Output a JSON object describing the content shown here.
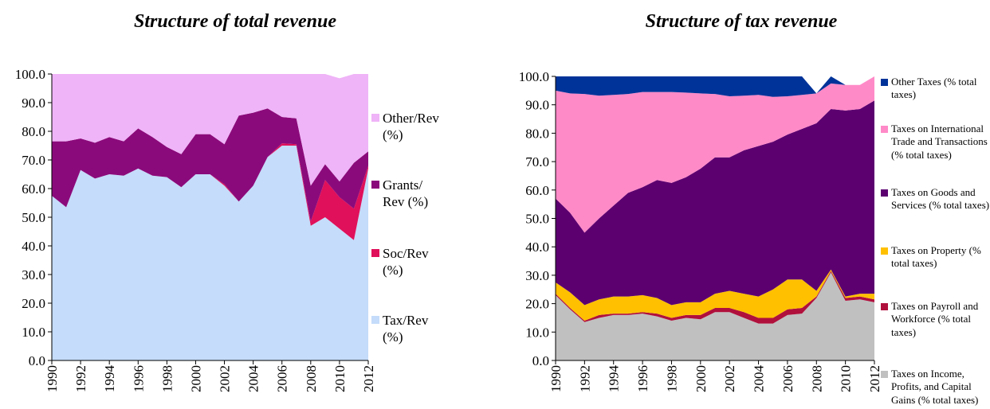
{
  "chart_data": [
    {
      "type": "area",
      "stacked": true,
      "title": "Structure of total revenue",
      "x": [
        1990,
        1991,
        1992,
        1993,
        1994,
        1995,
        1996,
        1997,
        1998,
        1999,
        2000,
        2001,
        2002,
        2003,
        2004,
        2005,
        2006,
        2007,
        2008,
        2009,
        2010,
        2011,
        2012
      ],
      "xlim": [
        1990,
        2012
      ],
      "xticks": [
        1990,
        1992,
        1994,
        1996,
        1998,
        2000,
        2002,
        2004,
        2006,
        2008,
        2010,
        2012
      ],
      "ylim": [
        0,
        100
      ],
      "yticks": [
        {
          "value": 0,
          "label": "0.0"
        },
        {
          "value": 10,
          "label": "10.0"
        },
        {
          "value": 20,
          "label": "20.0"
        },
        {
          "value": 30,
          "label": "30.0"
        },
        {
          "value": 40,
          "label": "40.0"
        },
        {
          "value": 50,
          "label": "50.0"
        },
        {
          "value": 60,
          "label": "60.0"
        },
        {
          "value": 70,
          "label": "70.0"
        },
        {
          "value": 80,
          "label": "80.0"
        },
        {
          "value": 90,
          "label": "90.0"
        },
        {
          "value": 100,
          "label": "100.0"
        }
      ],
      "series": [
        {
          "name": "Tax/Rev (%)",
          "color": "#c5dcfa",
          "values": [
            57.5,
            53.5,
            66.5,
            63.5,
            65,
            64.5,
            67,
            64.5,
            64,
            60.5,
            65,
            65,
            61,
            55.5,
            61,
            71,
            75,
            75,
            47,
            50,
            46,
            42,
            67
          ]
        },
        {
          "name": "Soc/Rev (%)",
          "color": "#e0105a",
          "values": [
            0,
            0,
            0,
            0,
            0,
            0,
            0,
            0,
            0,
            0,
            0,
            0,
            0.5,
            0,
            0,
            0,
            0.8,
            0.5,
            1.5,
            13,
            11,
            11,
            1
          ]
        },
        {
          "name": "Grants/ Rev (%)",
          "color": "#8b0a7b",
          "values": [
            19,
            23,
            11,
            12.5,
            13,
            12,
            14,
            13.5,
            10.5,
            11.5,
            14,
            14,
            14,
            30,
            25.5,
            17,
            9.2,
            9,
            12.5,
            5.5,
            5.5,
            16,
            5
          ]
        },
        {
          "name": "Other/Rev (%)",
          "color": "#efb3f7",
          "values": [
            23.5,
            23.5,
            22.5,
            24,
            22,
            23.5,
            19,
            22,
            25.5,
            28,
            21,
            21,
            24.5,
            14.5,
            13.5,
            12,
            15,
            15.5,
            39,
            31.5,
            36,
            31,
            27
          ]
        }
      ]
    },
    {
      "type": "area",
      "stacked": true,
      "title": "Structure of tax revenue",
      "x": [
        1990,
        1991,
        1992,
        1993,
        1994,
        1995,
        1996,
        1997,
        1998,
        1999,
        2000,
        2001,
        2002,
        2003,
        2004,
        2005,
        2006,
        2007,
        2008,
        2009,
        2010,
        2011,
        2012
      ],
      "xlim": [
        1990,
        2012
      ],
      "xticks": [
        1990,
        1992,
        1994,
        1996,
        1998,
        2000,
        2002,
        2004,
        2006,
        2008,
        2010,
        2012
      ],
      "ylim": [
        0,
        100
      ],
      "yticks": [
        {
          "value": 0,
          "label": "0.0"
        },
        {
          "value": 10,
          "label": "10.0"
        },
        {
          "value": 20,
          "label": "20.0"
        },
        {
          "value": 30,
          "label": "30.0"
        },
        {
          "value": 40,
          "label": "40.0"
        },
        {
          "value": 50,
          "label": "50.0"
        },
        {
          "value": 60,
          "label": "60.0"
        },
        {
          "value": 70,
          "label": "70.0"
        },
        {
          "value": 80,
          "label": "80.0"
        },
        {
          "value": 90,
          "label": "90.0"
        },
        {
          "value": 100,
          "label": "100.0"
        }
      ],
      "series": [
        {
          "name": "Taxes on Income, Profits, and Capital Gains (% total taxes)",
          "color": "#c0c0c0",
          "values": [
            23,
            18,
            13.5,
            15,
            16,
            16,
            16.5,
            15.5,
            14,
            15,
            14.5,
            17,
            17,
            15,
            13,
            13,
            16,
            16.5,
            22,
            31,
            21,
            21.5,
            20.5
          ]
        },
        {
          "name": "Taxes on Payroll and Workforce (% total taxes)",
          "color": "#b0103c",
          "values": [
            0.5,
            0.5,
            0.5,
            1,
            0.5,
            0.5,
            0.5,
            1,
            1,
            1,
            1.5,
            1.5,
            1.5,
            2,
            2,
            2,
            2,
            2,
            0.5,
            0.5,
            1,
            1,
            1
          ]
        },
        {
          "name": "Taxes on Property (% total taxes)",
          "color": "#ffc000",
          "values": [
            4,
            5.5,
            5.5,
            5.5,
            6,
            6,
            6,
            5.5,
            4.5,
            4.5,
            4.5,
            5,
            6,
            6.5,
            7.5,
            10,
            10.5,
            10,
            2,
            0.5,
            0.5,
            1,
            2
          ]
        },
        {
          "name": "Taxes on Goods and Services (% total taxes)",
          "color": "#5c0070",
          "values": [
            29.5,
            28,
            25.5,
            28.5,
            32,
            36.5,
            38,
            41.5,
            43,
            44,
            47,
            48,
            47,
            50.5,
            53,
            52,
            51,
            53,
            59,
            56.5,
            65.5,
            65,
            68
          ]
        },
        {
          "name": "Taxes on International Trade and Transactions (% total taxes)",
          "color": "#ff8ac8",
          "values": [
            38,
            42,
            48.8,
            43.2,
            39,
            34.8,
            33.5,
            31,
            32,
            29.8,
            26.5,
            22.3,
            21.5,
            19.2,
            18,
            15.8,
            13.5,
            12,
            10.5,
            9,
            9,
            8.5,
            8.5
          ]
        },
        {
          "name": "Other Taxes (% total taxes)",
          "color": "#003399",
          "values": [
            5,
            6,
            6.2,
            6.8,
            6.5,
            6.2,
            5.5,
            5.5,
            5.5,
            5.7,
            6,
            6.2,
            7,
            6.8,
            6.5,
            7.2,
            7,
            6.5,
            0,
            2.5,
            0,
            0,
            0
          ]
        }
      ]
    }
  ]
}
